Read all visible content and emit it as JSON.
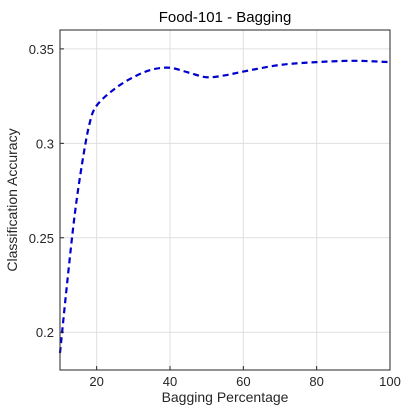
{
  "chart_data": {
    "type": "line",
    "title": "Food-101 - Bagging",
    "xlabel": "Bagging Percentage",
    "ylabel": "Classification Accuracy",
    "xlim": [
      10,
      100
    ],
    "ylim": [
      0.18,
      0.36
    ],
    "x_ticks": [
      20,
      40,
      60,
      80,
      100
    ],
    "y_ticks": [
      0.2,
      0.25,
      0.3,
      0.35
    ],
    "x_tick_labels": [
      "20",
      "40",
      "60",
      "80",
      "100"
    ],
    "y_tick_labels": [
      "0.2",
      "0.25",
      "0.3",
      "0.35"
    ],
    "grid": true,
    "legend": "none",
    "series": [
      {
        "line_style": "dashed",
        "color": "#0000cc",
        "x": [
          10,
          12,
          14,
          16,
          18,
          20,
          25,
          30,
          35,
          40,
          45,
          50,
          55,
          60,
          70,
          80,
          90,
          100
        ],
        "y": [
          0.189,
          0.227,
          0.262,
          0.289,
          0.31,
          0.32,
          0.329,
          0.335,
          0.339,
          0.34,
          0.3375,
          0.335,
          0.336,
          0.338,
          0.3415,
          0.343,
          0.3437,
          0.343
        ]
      }
    ]
  }
}
